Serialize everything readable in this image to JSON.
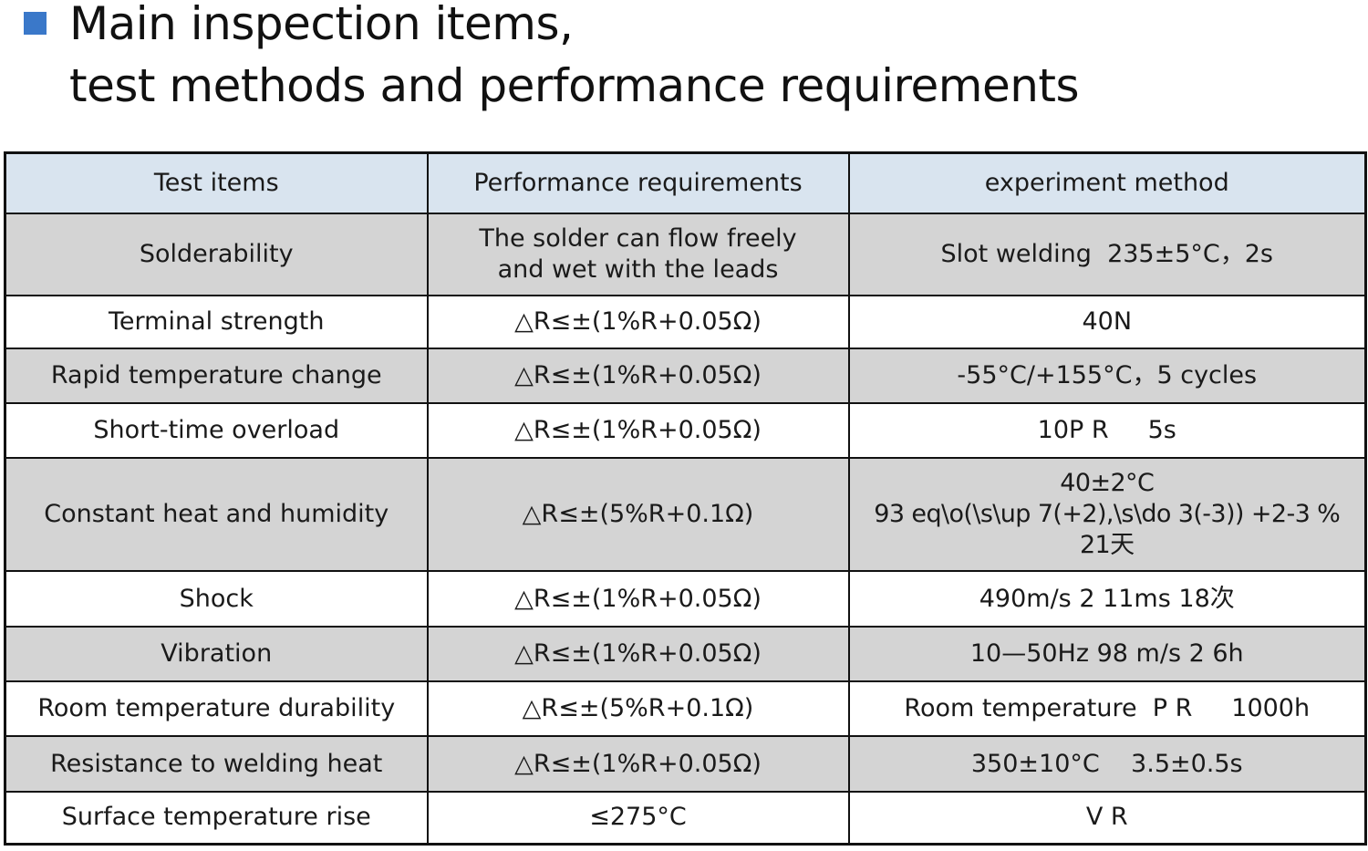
{
  "heading": {
    "line1": "Main inspection items,",
    "line2": "test methods and performance requirements"
  },
  "table": {
    "headers": [
      "Test items",
      "Performance requirements",
      "experiment method"
    ],
    "rows": [
      {
        "item": "Solderability",
        "requirement": [
          "The solder can flow freely",
          "and wet with the leads"
        ],
        "method": [
          "Slot welding  235±5°C，2s"
        ]
      },
      {
        "item": "Terminal strength",
        "requirement": [
          "△R≤±(1%R+0.05Ω)"
        ],
        "method": [
          "40N"
        ]
      },
      {
        "item": "Rapid temperature change",
        "requirement": [
          "△R≤±(1%R+0.05Ω)"
        ],
        "method": [
          "-55°C/+155°C，5 cycles"
        ]
      },
      {
        "item": "Short-time overload",
        "requirement": [
          "△R≤±(1%R+0.05Ω)"
        ],
        "method": [
          "10P R     5s"
        ]
      },
      {
        "item": "Constant heat and humidity",
        "requirement": [
          "△R≤±(5%R+0.1Ω)"
        ],
        "method": [
          "40±2°C",
          "93 eq\\o(\\s\\up 7(+2),\\s\\do 3(-3)) +2-3 %",
          "21天"
        ]
      },
      {
        "item": "Shock",
        "requirement": [
          "△R≤±(1%R+0.05Ω)"
        ],
        "method": [
          "490m/s 2 11ms 18次"
        ]
      },
      {
        "item": "Vibration",
        "requirement": [
          "△R≤±(1%R+0.05Ω)"
        ],
        "method": [
          "10—50Hz 98 m/s 2 6h"
        ]
      },
      {
        "item": "Room temperature durability",
        "requirement": [
          "△R≤±(5%R+0.1Ω)"
        ],
        "method": [
          "Room temperature  P R     1000h"
        ]
      },
      {
        "item": "Resistance to welding heat",
        "requirement": [
          "△R≤±(1%R+0.05Ω)"
        ],
        "method": [
          "350±10°C    3.5±0.5s"
        ]
      },
      {
        "item": "Surface temperature rise",
        "requirement": [
          "≤275°C"
        ],
        "method": [
          "V R"
        ]
      }
    ]
  },
  "colors": {
    "bullet": "#3a78c9",
    "header_bg": "#d9e4ef",
    "shaded_row_bg": "#d4d4d4",
    "plain_row_bg": "#ffffff",
    "border": "#111111"
  }
}
